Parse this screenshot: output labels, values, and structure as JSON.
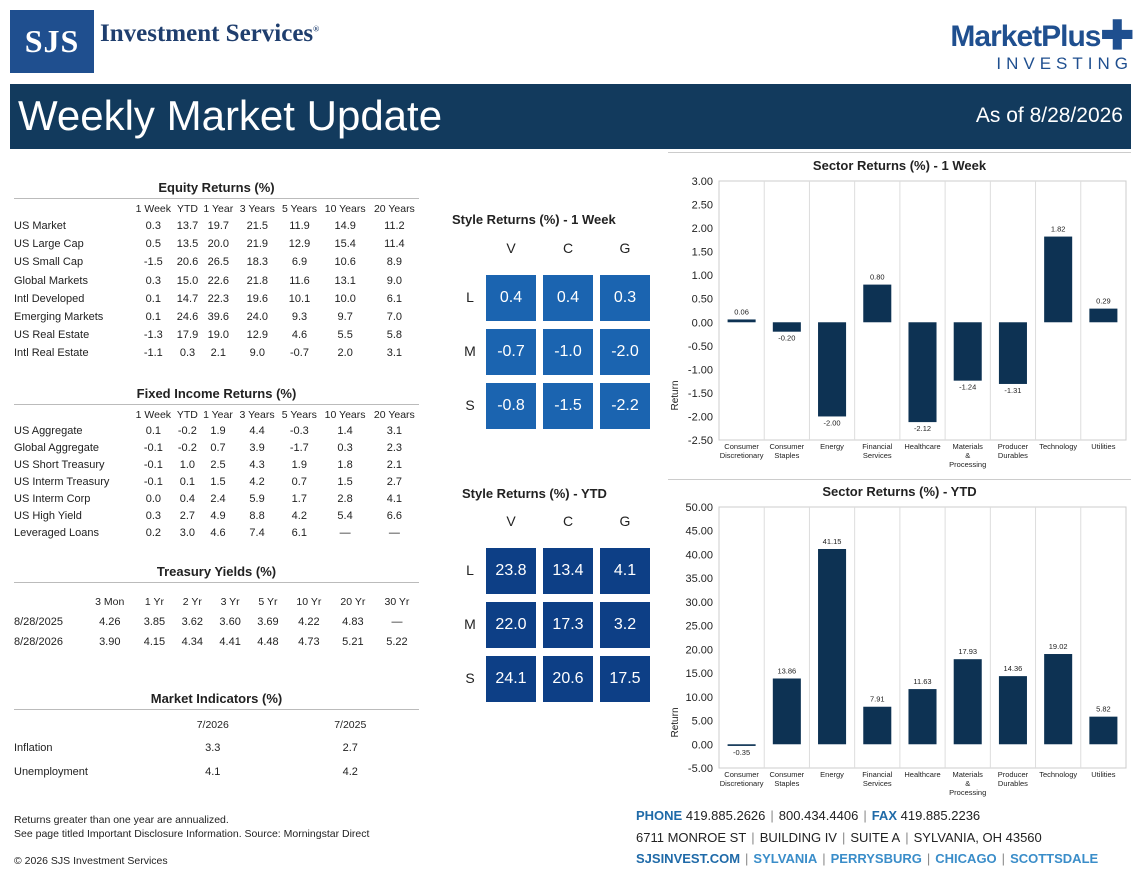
{
  "brand": {
    "logo_letters": "SJS",
    "name": "Investment Services",
    "registered": "®",
    "partner_main": "MarketPlus",
    "partner_sub": "INVESTING"
  },
  "banner": {
    "title": "Weekly Market Update",
    "as_of": "As of 8/28/2026"
  },
  "equity": {
    "title": "Equity Returns (%)",
    "columns": [
      "1 Week",
      "YTD",
      "1 Year",
      "3 Years",
      "5 Years",
      "10 Years",
      "20 Years"
    ],
    "rows": [
      {
        "name": "US Market",
        "values": [
          "0.3",
          "13.7",
          "19.7",
          "21.5",
          "11.9",
          "14.9",
          "11.2"
        ]
      },
      {
        "name": "US Large Cap",
        "values": [
          "0.5",
          "13.5",
          "20.0",
          "21.9",
          "12.9",
          "15.4",
          "11.4"
        ]
      },
      {
        "name": "US Small Cap",
        "values": [
          "-1.5",
          "20.6",
          "26.5",
          "18.3",
          "6.9",
          "10.6",
          "8.9"
        ]
      },
      {
        "name": "Global Markets",
        "values": [
          "0.3",
          "15.0",
          "22.6",
          "21.8",
          "11.6",
          "13.1",
          "9.0"
        ]
      },
      {
        "name": "Intl Developed",
        "values": [
          "0.1",
          "14.7",
          "22.3",
          "19.6",
          "10.1",
          "10.0",
          "6.1"
        ]
      },
      {
        "name": "Emerging Markets",
        "values": [
          "0.1",
          "24.6",
          "39.6",
          "24.0",
          "9.3",
          "9.7",
          "7.0"
        ]
      },
      {
        "name": "US Real Estate",
        "values": [
          "-1.3",
          "17.9",
          "19.0",
          "12.9",
          "4.6",
          "5.5",
          "5.8"
        ]
      },
      {
        "name": "Intl Real Estate",
        "values": [
          "-1.1",
          "0.3",
          "2.1",
          "9.0",
          "-0.7",
          "2.0",
          "3.1"
        ]
      }
    ]
  },
  "fixed": {
    "title": "Fixed Income Returns (%)",
    "columns": [
      "1 Week",
      "YTD",
      "1 Year",
      "3 Years",
      "5 Years",
      "10 Years",
      "20 Years"
    ],
    "rows": [
      {
        "name": "US Aggregate",
        "values": [
          "0.1",
          "-0.2",
          "1.9",
          "4.4",
          "-0.3",
          "1.4",
          "3.1"
        ]
      },
      {
        "name": "Global Aggregate",
        "values": [
          "-0.1",
          "-0.2",
          "0.7",
          "3.9",
          "-1.7",
          "0.3",
          "2.3"
        ]
      },
      {
        "name": "US Short Treasury",
        "values": [
          "-0.1",
          "1.0",
          "2.5",
          "4.3",
          "1.9",
          "1.8",
          "2.1"
        ]
      },
      {
        "name": "US Interm Treasury",
        "values": [
          "-0.1",
          "0.1",
          "1.5",
          "4.2",
          "0.7",
          "1.5",
          "2.7"
        ]
      },
      {
        "name": "US Interm Corp",
        "values": [
          "0.0",
          "0.4",
          "2.4",
          "5.9",
          "1.7",
          "2.8",
          "4.1"
        ]
      },
      {
        "name": "US High Yield",
        "values": [
          "0.3",
          "2.7",
          "4.9",
          "8.8",
          "4.2",
          "5.4",
          "6.6"
        ]
      },
      {
        "name": "Leveraged Loans",
        "values": [
          "0.2",
          "3.0",
          "4.6",
          "7.4",
          "6.1",
          "—",
          "—"
        ]
      }
    ]
  },
  "treasury": {
    "title": "Treasury Yields (%)",
    "columns": [
      "3 Mon",
      "1 Yr",
      "2 Yr",
      "3 Yr",
      "5 Yr",
      "10 Yr",
      "20 Yr",
      "30 Yr"
    ],
    "rows": [
      {
        "name": "8/28/2025",
        "values": [
          "4.26",
          "3.85",
          "3.62",
          "3.60",
          "3.69",
          "4.22",
          "4.83",
          "—"
        ]
      },
      {
        "name": "8/28/2026",
        "values": [
          "3.90",
          "4.15",
          "4.34",
          "4.41",
          "4.48",
          "4.73",
          "5.21",
          "5.22"
        ]
      }
    ]
  },
  "indicators": {
    "title": "Market Indicators (%)",
    "columns": [
      "7/2026",
      "7/2025"
    ],
    "rows": [
      {
        "name": "Inflation",
        "values": [
          "3.3",
          "2.7"
        ]
      },
      {
        "name": "Unemployment",
        "values": [
          "4.1",
          "4.2"
        ]
      }
    ]
  },
  "style_week": {
    "title": "Style Returns (%) - 1 Week",
    "cols": [
      "V",
      "C",
      "G"
    ],
    "rows": [
      "L",
      "M",
      "S"
    ],
    "values": [
      [
        "0.4",
        "0.4",
        "0.3"
      ],
      [
        "-0.7",
        "-1.0",
        "-2.0"
      ],
      [
        "-0.8",
        "-1.5",
        "-2.2"
      ]
    ],
    "color": "#1b64b0"
  },
  "style_ytd": {
    "title": "Style Returns (%) - YTD",
    "cols": [
      "V",
      "C",
      "G"
    ],
    "rows": [
      "L",
      "M",
      "S"
    ],
    "values": [
      [
        "23.8",
        "13.4",
        "4.1"
      ],
      [
        "22.0",
        "17.3",
        "3.2"
      ],
      [
        "24.1",
        "20.6",
        "17.5"
      ]
    ],
    "color": "#0d3f86"
  },
  "chart_data": [
    {
      "type": "bar",
      "title": "Sector Returns (%) - 1 Week",
      "ylabel": "Return",
      "categories": [
        "Consumer Discretionary",
        "Consumer Staples",
        "Energy",
        "Financial Services",
        "Healthcare",
        "Materials & Processing",
        "Producer Durables",
        "Technology",
        "Utilities"
      ],
      "values": [
        0.06,
        -0.2,
        -2.0,
        0.8,
        -2.12,
        -1.24,
        -1.31,
        1.82,
        0.29
      ],
      "value_labels": [
        "0.06",
        "-0.20",
        "-2.00",
        "0.80",
        "-2.12",
        "-1.24",
        "-1.31",
        "1.82",
        "0.29"
      ],
      "ylim": [
        -2.5,
        3.0
      ],
      "yticks": [
        "3.00",
        "2.50",
        "2.00",
        "1.50",
        "1.00",
        "0.50",
        "0.00",
        "-0.50",
        "-1.00",
        "-1.50",
        "-2.00",
        "-2.50"
      ],
      "bar_color": "#0d3253"
    },
    {
      "type": "bar",
      "title": "Sector Returns (%) - YTD",
      "ylabel": "Return",
      "categories": [
        "Consumer Discretionary",
        "Consumer Staples",
        "Energy",
        "Financial Services",
        "Healthcare",
        "Materials & Processing",
        "Producer Durables",
        "Technology",
        "Utilities"
      ],
      "values": [
        -0.35,
        13.86,
        41.15,
        7.91,
        11.63,
        17.93,
        14.36,
        19.02,
        5.82
      ],
      "value_labels": [
        "-0.35",
        "13.86",
        "41.15",
        "7.91",
        "11.63",
        "17.93",
        "14.36",
        "19.02",
        "5.82"
      ],
      "ylim": [
        -5,
        50
      ],
      "yticks": [
        "50.00",
        "45.00",
        "40.00",
        "35.00",
        "30.00",
        "25.00",
        "20.00",
        "15.00",
        "10.00",
        "5.00",
        "0.00",
        "-5.00"
      ],
      "bar_color": "#0d3253"
    }
  ],
  "footer": {
    "note1": "Returns greater than one year are annualized.",
    "note2": "See page titled Important Disclosure Information. Source: Morningstar Direct",
    "copyright": "© 2026 SJS Investment Services",
    "phone_label": "PHONE",
    "phone": "419.885.2626",
    "phone2": "800.434.4406",
    "fax_label": "FAX",
    "fax": "419.885.2236",
    "addr1": "6711 MONROE ST",
    "addr2": "BUILDING IV",
    "addr3": "SUITE A",
    "addr4": "SYLVANIA, OH 43560",
    "web": "SJSINVEST.COM",
    "cities": [
      "SYLVANIA",
      "PERRYSBURG",
      "CHICAGO",
      "SCOTTSDALE"
    ]
  }
}
